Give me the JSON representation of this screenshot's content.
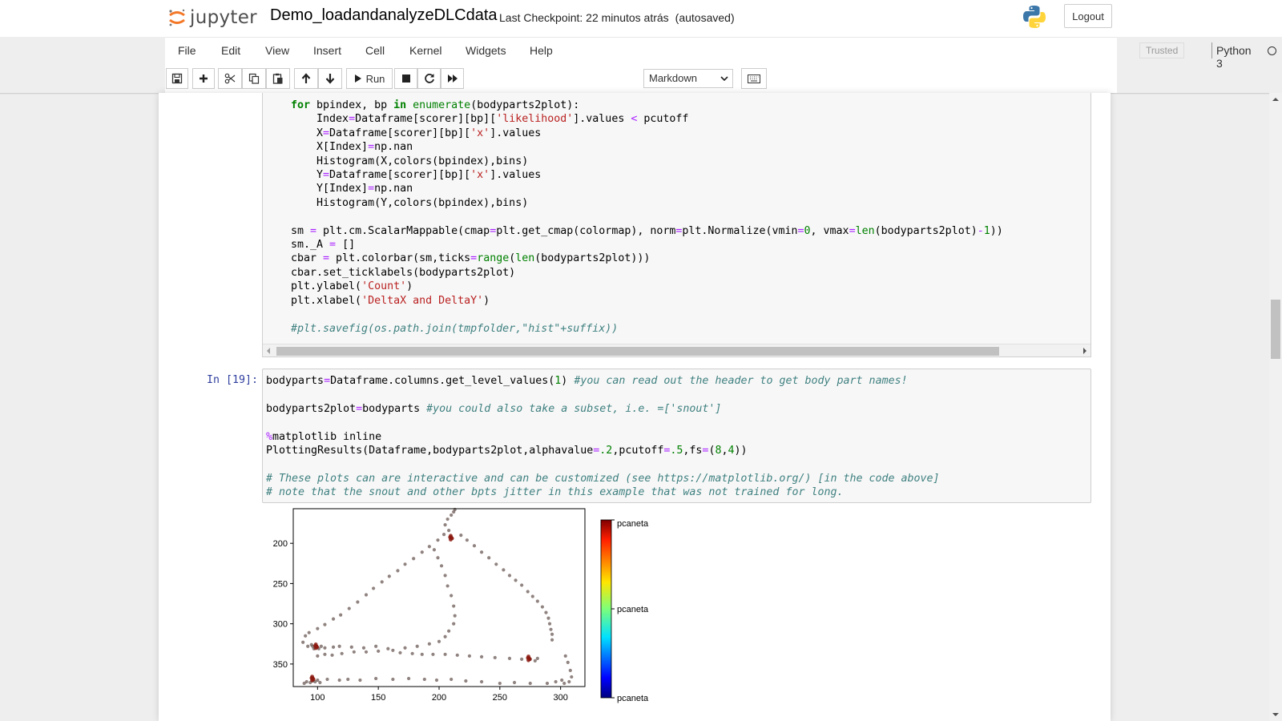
{
  "header": {
    "logo_text": "jupyter",
    "notebook_name": "Demo_loadandanalyzeDLCdata",
    "checkpoint": "Last Checkpoint: 22 minutos atrás",
    "autosaved": "(autosaved)",
    "logout_label": "Logout",
    "python_logo_icon": "python-logo-icon"
  },
  "menubar": {
    "items": [
      "File",
      "Edit",
      "View",
      "Insert",
      "Cell",
      "Kernel",
      "Widgets",
      "Help"
    ],
    "trusted_label": "Trusted",
    "kernel_name": "Python 3"
  },
  "toolbar": {
    "run_label": "Run",
    "cell_type": "Markdown",
    "icons": [
      "save-icon",
      "plus-icon",
      "cut-icon",
      "copy-icon",
      "paste-icon",
      "arrow-up-icon",
      "arrow-down-icon",
      "play-icon",
      "stop-icon",
      "restart-icon",
      "fast-forward-icon",
      "keyboard-icon"
    ]
  },
  "cell1": {
    "lines": [
      "    for bpindex, bp in enumerate(bodyparts2plot):",
      "        Index=Dataframe[scorer][bp]['likelihood'].values < pcutoff",
      "        X=Dataframe[scorer][bp]['x'].values",
      "        X[Index]=np.nan",
      "        Histogram(X,colors(bpindex),bins)",
      "        Y=Dataframe[scorer][bp]['x'].values",
      "        Y[Index]=np.nan",
      "        Histogram(Y,colors(bpindex),bins)",
      "",
      "    sm = plt.cm.ScalarMappable(cmap=plt.get_cmap(colormap), norm=plt.Normalize(vmin=0, vmax=len(bodyparts2plot)-1))",
      "    sm._A = []",
      "    cbar = plt.colorbar(sm,ticks=range(len(bodyparts2plot)))",
      "    cbar.set_ticklabels(bodyparts2plot)",
      "    plt.ylabel('Count')",
      "    plt.xlabel('DeltaX and DeltaY')",
      "",
      "    #plt.savefig(os.path.join(tmpfolder,\"hist\"+suffix))"
    ]
  },
  "cell2": {
    "prompt": "In [19]:",
    "lines": [
      "bodyparts=Dataframe.columns.get_level_values(1) #you can read out the header to get body part names!",
      "",
      "bodyparts2plot=bodyparts #you could also take a subset, i.e. =['snout']",
      "",
      "%matplotlib inline",
      "PlottingResults(Dataframe,bodyparts2plot,alphavalue=.2,pcutoff=.5,fs=(8,4))",
      "",
      "# These plots can are interactive and can be customized (see https://matplotlib.org/) [in the code above]",
      "# note that the snout and other bpts jitter in this example that was not trained for long."
    ]
  },
  "chart_data": {
    "type": "scatter",
    "title": "",
    "xlabel": "",
    "ylabel": "",
    "xlim": [
      80,
      320
    ],
    "ylim": [
      378,
      157
    ],
    "y_inverted": true,
    "x_ticks": [
      100,
      150,
      200,
      250,
      300
    ],
    "y_ticks": [
      200,
      250,
      300,
      350
    ],
    "marker_color": "#6b5a55",
    "cluster_color": "#8b1a10",
    "points": [
      [
        89,
        374
      ],
      [
        91,
        372
      ],
      [
        94,
        373
      ],
      [
        96,
        371
      ],
      [
        98,
        372
      ],
      [
        100,
        370
      ],
      [
        102,
        373
      ],
      [
        108,
        369
      ],
      [
        118,
        370
      ],
      [
        125,
        369
      ],
      [
        135,
        370
      ],
      [
        148,
        368
      ],
      [
        162,
        369
      ],
      [
        175,
        368
      ],
      [
        188,
        369
      ],
      [
        198,
        370
      ],
      [
        210,
        369
      ],
      [
        222,
        371
      ],
      [
        235,
        372
      ],
      [
        250,
        374
      ],
      [
        262,
        373
      ],
      [
        275,
        374
      ],
      [
        289,
        374
      ],
      [
        296,
        372
      ],
      [
        301,
        370
      ],
      [
        303,
        374
      ],
      [
        307,
        372
      ],
      [
        309,
        366
      ],
      [
        308,
        358
      ],
      [
        306,
        348
      ],
      [
        304,
        340
      ],
      [
        92,
        328
      ],
      [
        95,
        326
      ],
      [
        96,
        328
      ],
      [
        97,
        331
      ],
      [
        99,
        328
      ],
      [
        101,
        331
      ],
      [
        103,
        328
      ],
      [
        106,
        330
      ],
      [
        113,
        329
      ],
      [
        118,
        328
      ],
      [
        128,
        329
      ],
      [
        138,
        330
      ],
      [
        148,
        328
      ],
      [
        158,
        331
      ],
      [
        168,
        336
      ],
      [
        178,
        337
      ],
      [
        186,
        338
      ],
      [
        195,
        338
      ],
      [
        205,
        338
      ],
      [
        215,
        339
      ],
      [
        225,
        340
      ],
      [
        235,
        341
      ],
      [
        246,
        342
      ],
      [
        258,
        343
      ],
      [
        268,
        344
      ],
      [
        275,
        344
      ],
      [
        279,
        346
      ],
      [
        281,
        343
      ],
      [
        88,
        323
      ],
      [
        90,
        315
      ],
      [
        93,
        311
      ],
      [
        100,
        306
      ],
      [
        106,
        301
      ],
      [
        113,
        294
      ],
      [
        119,
        289
      ],
      [
        126,
        281
      ],
      [
        133,
        273
      ],
      [
        140,
        264
      ],
      [
        146,
        256
      ],
      [
        153,
        248
      ],
      [
        159,
        241
      ],
      [
        166,
        234
      ],
      [
        172,
        226
      ],
      [
        179,
        219
      ],
      [
        186,
        211
      ],
      [
        192,
        204
      ],
      [
        199,
        196
      ],
      [
        204,
        189
      ],
      [
        208,
        184
      ],
      [
        205,
        177
      ],
      [
        207,
        170
      ],
      [
        210,
        165
      ],
      [
        212,
        161
      ],
      [
        213,
        158
      ],
      [
        218,
        190
      ],
      [
        223,
        196
      ],
      [
        229,
        203
      ],
      [
        235,
        211
      ],
      [
        241,
        218
      ],
      [
        247,
        226
      ],
      [
        253,
        233
      ],
      [
        258,
        240
      ],
      [
        263,
        246
      ],
      [
        268,
        252
      ],
      [
        273,
        260
      ],
      [
        277,
        266
      ],
      [
        281,
        272
      ],
      [
        285,
        279
      ],
      [
        288,
        286
      ],
      [
        290,
        293
      ],
      [
        291,
        300
      ],
      [
        292,
        307
      ],
      [
        293,
        313
      ],
      [
        293,
        320
      ],
      [
        100,
        340
      ],
      [
        106,
        338
      ],
      [
        112,
        339
      ],
      [
        120,
        337
      ],
      [
        130,
        335
      ],
      [
        140,
        335
      ],
      [
        150,
        334
      ],
      [
        162,
        333
      ],
      [
        172,
        330
      ],
      [
        182,
        328
      ],
      [
        192,
        325
      ],
      [
        200,
        322
      ],
      [
        205,
        316
      ],
      [
        208,
        309
      ],
      [
        212,
        300
      ],
      [
        213,
        290
      ],
      [
        212,
        278
      ],
      [
        210,
        265
      ],
      [
        207,
        253
      ],
      [
        205,
        240
      ],
      [
        202,
        228
      ],
      [
        199,
        218
      ],
      [
        196,
        208
      ]
    ],
    "clusters": [
      [
        99,
        328
      ],
      [
        96,
        368
      ],
      [
        210,
        193
      ],
      [
        274,
        343
      ]
    ],
    "colorbar": {
      "type": "colorbar",
      "colormap": "jet",
      "tick_labels": [
        "pcaneta",
        "pcaneta",
        "pcaneta"
      ]
    }
  }
}
